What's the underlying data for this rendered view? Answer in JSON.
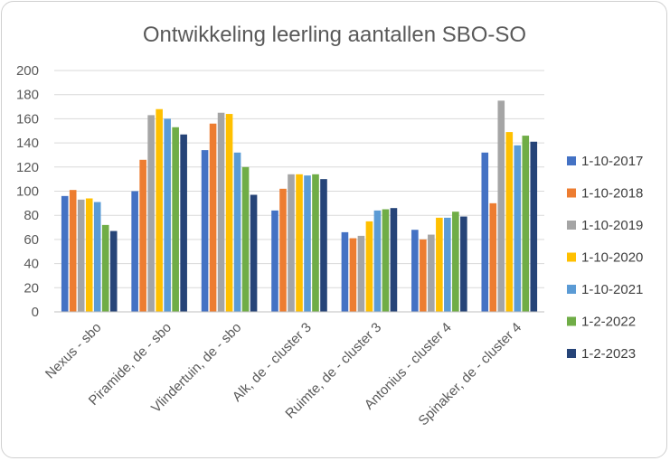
{
  "chart_data": {
    "type": "bar",
    "title": "Ontwikkeling leerling aantallen SBO-SO",
    "xlabel": "",
    "ylabel": "",
    "ylim": [
      0,
      200
    ],
    "yticks": [
      "0",
      "20",
      "40",
      "60",
      "80",
      "100",
      "120",
      "140",
      "160",
      "180",
      "200"
    ],
    "grid": true,
    "legend": "right",
    "categories": [
      "Nexus - sbo",
      "Piramide, de - sbo",
      "Vlindertuin, de - sbo",
      "Alk, de - cluster 3",
      "Ruimte, de - cluster 3",
      "Antonius - cluster 4",
      "Spinaker, de - cluster 4"
    ],
    "series": [
      {
        "name": "1-10-2017",
        "color": "#4472C4",
        "values": [
          96,
          100,
          134,
          84,
          66,
          68,
          132
        ]
      },
      {
        "name": "1-10-2018",
        "color": "#ED7D31",
        "values": [
          101,
          126,
          156,
          102,
          61,
          60,
          90
        ]
      },
      {
        "name": "1-10-2019",
        "color": "#A5A5A5",
        "values": [
          93,
          163,
          165,
          114,
          63,
          64,
          175
        ]
      },
      {
        "name": "1-10-2020",
        "color": "#FFC000",
        "values": [
          94,
          168,
          164,
          114,
          75,
          78,
          149
        ]
      },
      {
        "name": "1-10-2021",
        "color": "#5B9BD5",
        "values": [
          91,
          160,
          132,
          113,
          84,
          78,
          138
        ]
      },
      {
        "name": "1-2-2022",
        "color": "#70AD47",
        "values": [
          72,
          153,
          120,
          114,
          85,
          83,
          146
        ]
      },
      {
        "name": "1-2-2023",
        "color": "#264478",
        "values": [
          67,
          147,
          97,
          110,
          86,
          79,
          141
        ]
      }
    ]
  }
}
